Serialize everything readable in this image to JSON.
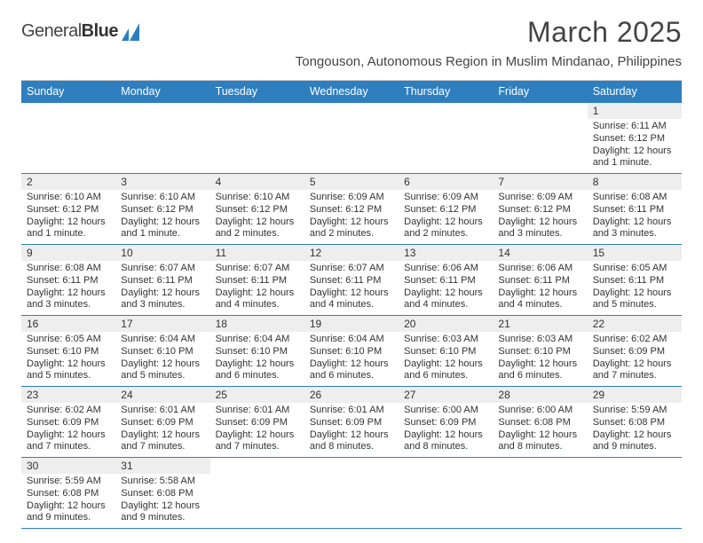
{
  "brand": {
    "name_a": "General",
    "name_b": "Blue",
    "mark_fill": "#2f7fbf"
  },
  "title": "March 2025",
  "location": "Tongouson, Autonomous Region in Muslim Mindanao, Philippines",
  "colors": {
    "header_bg": "#2f7fbf",
    "week_divider": "#2f7fbf",
    "daynum_bg": "#eeeeee",
    "text": "#333333",
    "page_bg": "#ffffff"
  },
  "typography": {
    "title_pt": 32,
    "location_pt": 15,
    "head_pt": 12.5,
    "daynum_pt": 12,
    "body_pt": 11
  },
  "layout": {
    "cols": 7,
    "rows": 6,
    "aspect": "792x612"
  },
  "dow": [
    "Sunday",
    "Monday",
    "Tuesday",
    "Wednesday",
    "Thursday",
    "Friday",
    "Saturday"
  ],
  "weeks": [
    [
      null,
      null,
      null,
      null,
      null,
      null,
      {
        "n": "1",
        "sr": "6:11 AM",
        "ss": "6:12 PM",
        "dl": "12 hours and 1 minute."
      }
    ],
    [
      {
        "n": "2",
        "sr": "6:10 AM",
        "ss": "6:12 PM",
        "dl": "12 hours and 1 minute."
      },
      {
        "n": "3",
        "sr": "6:10 AM",
        "ss": "6:12 PM",
        "dl": "12 hours and 1 minute."
      },
      {
        "n": "4",
        "sr": "6:10 AM",
        "ss": "6:12 PM",
        "dl": "12 hours and 2 minutes."
      },
      {
        "n": "5",
        "sr": "6:09 AM",
        "ss": "6:12 PM",
        "dl": "12 hours and 2 minutes."
      },
      {
        "n": "6",
        "sr": "6:09 AM",
        "ss": "6:12 PM",
        "dl": "12 hours and 2 minutes."
      },
      {
        "n": "7",
        "sr": "6:09 AM",
        "ss": "6:12 PM",
        "dl": "12 hours and 3 minutes."
      },
      {
        "n": "8",
        "sr": "6:08 AM",
        "ss": "6:11 PM",
        "dl": "12 hours and 3 minutes."
      }
    ],
    [
      {
        "n": "9",
        "sr": "6:08 AM",
        "ss": "6:11 PM",
        "dl": "12 hours and 3 minutes."
      },
      {
        "n": "10",
        "sr": "6:07 AM",
        "ss": "6:11 PM",
        "dl": "12 hours and 3 minutes."
      },
      {
        "n": "11",
        "sr": "6:07 AM",
        "ss": "6:11 PM",
        "dl": "12 hours and 4 minutes."
      },
      {
        "n": "12",
        "sr": "6:07 AM",
        "ss": "6:11 PM",
        "dl": "12 hours and 4 minutes."
      },
      {
        "n": "13",
        "sr": "6:06 AM",
        "ss": "6:11 PM",
        "dl": "12 hours and 4 minutes."
      },
      {
        "n": "14",
        "sr": "6:06 AM",
        "ss": "6:11 PM",
        "dl": "12 hours and 4 minutes."
      },
      {
        "n": "15",
        "sr": "6:05 AM",
        "ss": "6:11 PM",
        "dl": "12 hours and 5 minutes."
      }
    ],
    [
      {
        "n": "16",
        "sr": "6:05 AM",
        "ss": "6:10 PM",
        "dl": "12 hours and 5 minutes."
      },
      {
        "n": "17",
        "sr": "6:04 AM",
        "ss": "6:10 PM",
        "dl": "12 hours and 5 minutes."
      },
      {
        "n": "18",
        "sr": "6:04 AM",
        "ss": "6:10 PM",
        "dl": "12 hours and 6 minutes."
      },
      {
        "n": "19",
        "sr": "6:04 AM",
        "ss": "6:10 PM",
        "dl": "12 hours and 6 minutes."
      },
      {
        "n": "20",
        "sr": "6:03 AM",
        "ss": "6:10 PM",
        "dl": "12 hours and 6 minutes."
      },
      {
        "n": "21",
        "sr": "6:03 AM",
        "ss": "6:10 PM",
        "dl": "12 hours and 6 minutes."
      },
      {
        "n": "22",
        "sr": "6:02 AM",
        "ss": "6:09 PM",
        "dl": "12 hours and 7 minutes."
      }
    ],
    [
      {
        "n": "23",
        "sr": "6:02 AM",
        "ss": "6:09 PM",
        "dl": "12 hours and 7 minutes."
      },
      {
        "n": "24",
        "sr": "6:01 AM",
        "ss": "6:09 PM",
        "dl": "12 hours and 7 minutes."
      },
      {
        "n": "25",
        "sr": "6:01 AM",
        "ss": "6:09 PM",
        "dl": "12 hours and 7 minutes."
      },
      {
        "n": "26",
        "sr": "6:01 AM",
        "ss": "6:09 PM",
        "dl": "12 hours and 8 minutes."
      },
      {
        "n": "27",
        "sr": "6:00 AM",
        "ss": "6:09 PM",
        "dl": "12 hours and 8 minutes."
      },
      {
        "n": "28",
        "sr": "6:00 AM",
        "ss": "6:08 PM",
        "dl": "12 hours and 8 minutes."
      },
      {
        "n": "29",
        "sr": "5:59 AM",
        "ss": "6:08 PM",
        "dl": "12 hours and 9 minutes."
      }
    ],
    [
      {
        "n": "30",
        "sr": "5:59 AM",
        "ss": "6:08 PM",
        "dl": "12 hours and 9 minutes."
      },
      {
        "n": "31",
        "sr": "5:58 AM",
        "ss": "6:08 PM",
        "dl": "12 hours and 9 minutes."
      },
      null,
      null,
      null,
      null,
      null
    ]
  ],
  "labels": {
    "sunrise": "Sunrise:",
    "sunset": "Sunset:",
    "daylight": "Daylight:"
  }
}
